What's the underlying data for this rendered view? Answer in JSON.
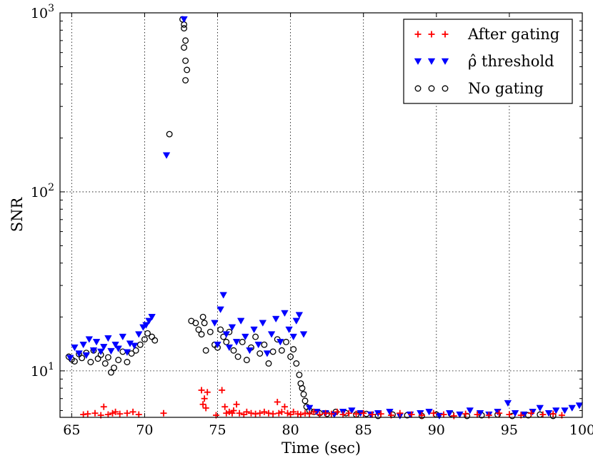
{
  "chart_data": {
    "type": "scatter",
    "title": "",
    "xlabel": "Time (sec)",
    "ylabel": "SNR",
    "xlim": [
      64.2,
      100
    ],
    "ylim": [
      5.5,
      1000
    ],
    "yscale": "log",
    "grid": true,
    "legend_position": "top-right",
    "x_ticks": [
      65,
      70,
      75,
      80,
      85,
      90,
      95,
      100
    ],
    "x_tick_labels": [
      "65",
      "70",
      "75",
      "80",
      "85",
      "90",
      "95",
      "100"
    ],
    "y_ticks": [
      10,
      100,
      1000
    ],
    "y_tick_labels": [
      {
        "base": "10",
        "exp": "1"
      },
      {
        "base": "10",
        "exp": "2"
      },
      {
        "base": "10",
        "exp": "3"
      }
    ],
    "series": [
      {
        "name": "After gating",
        "marker": "plus",
        "color": "#ff0000",
        "x": [
          65.8,
          66.1,
          66.6,
          67.0,
          67.2,
          67.5,
          67.8,
          68.0,
          68.3,
          68.8,
          69.2,
          69.6,
          71.3,
          73.9,
          74.0,
          74.1,
          74.2,
          74.3,
          74.9,
          75.3,
          75.5,
          75.6,
          75.8,
          76.0,
          76.1,
          76.3,
          76.5,
          76.8,
          77.0,
          77.3,
          77.6,
          77.9,
          78.2,
          78.5,
          78.8,
          79.1,
          79.2,
          79.4,
          79.6,
          79.8,
          80.0,
          80.2,
          80.5,
          80.7,
          81.0,
          81.3,
          81.6,
          82.0,
          82.4,
          82.8,
          83.2,
          83.6,
          84.0,
          84.5,
          85.0,
          85.6,
          86.2,
          86.9,
          87.5,
          88.3,
          89.0,
          89.8,
          90.5,
          91.2,
          92.0,
          92.8,
          93.6,
          94.3,
          95.0,
          95.8,
          96.5,
          97.3,
          98.0,
          98.6
        ],
        "y": [
          5.7,
          5.75,
          5.8,
          5.65,
          6.3,
          5.7,
          5.8,
          5.9,
          5.75,
          5.8,
          5.9,
          5.7,
          5.8,
          7.8,
          6.5,
          7.0,
          6.2,
          7.6,
          5.65,
          7.8,
          6.3,
          5.8,
          5.9,
          5.8,
          6.0,
          6.5,
          5.8,
          5.7,
          5.9,
          5.8,
          5.75,
          5.8,
          5.9,
          5.8,
          5.75,
          6.7,
          5.8,
          5.9,
          6.3,
          5.8,
          5.7,
          5.9,
          5.75,
          5.7,
          5.8,
          5.75,
          5.9,
          5.7,
          5.8,
          5.75,
          5.9,
          5.7,
          5.8,
          5.75,
          5.8,
          5.7,
          5.75,
          5.65,
          5.8,
          5.7,
          5.65,
          5.8,
          5.7,
          5.6,
          5.75,
          5.7,
          5.65,
          5.8,
          5.7,
          5.65,
          5.8,
          5.7,
          5.75,
          5.65
        ]
      },
      {
        "name": "ρ̂ threshold",
        "marker": "triangle-down",
        "color": "#0000ff",
        "x": [
          64.9,
          65.2,
          65.5,
          65.8,
          66.0,
          66.2,
          66.5,
          66.7,
          67.0,
          67.2,
          67.5,
          67.7,
          68.0,
          68.2,
          68.5,
          68.8,
          69.0,
          69.3,
          69.6,
          69.9,
          70.1,
          70.3,
          70.5,
          71.5,
          72.7,
          74.8,
          75.0,
          75.2,
          75.4,
          75.6,
          75.8,
          76.0,
          76.3,
          76.6,
          76.9,
          77.2,
          77.5,
          77.8,
          78.1,
          78.4,
          78.7,
          79.0,
          79.3,
          79.6,
          79.9,
          80.2,
          80.4,
          80.6,
          80.9,
          81.3,
          81.8,
          82.4,
          83.0,
          83.6,
          84.2,
          84.8,
          85.5,
          86.0,
          86.8,
          87.5,
          88.2,
          88.9,
          89.5,
          90.2,
          90.9,
          91.6,
          92.3,
          93.0,
          93.6,
          94.2,
          94.9,
          95.4,
          96.0,
          96.6,
          97.1,
          97.7,
          98.2,
          98.8,
          99.3,
          99.8
        ],
        "y": [
          11.8,
          13.5,
          12.5,
          14.0,
          12.2,
          15.0,
          13.0,
          14.5,
          12.8,
          13.6,
          15.2,
          12.9,
          14.0,
          13.3,
          15.5,
          12.7,
          14.2,
          13.8,
          16.0,
          17.5,
          18.0,
          19.0,
          20.0,
          160,
          920,
          18.5,
          14.0,
          22.0,
          26.5,
          16.0,
          13.5,
          17.5,
          14.5,
          19.0,
          15.5,
          13.0,
          17.0,
          14.0,
          18.5,
          12.5,
          16.0,
          19.5,
          14.5,
          21.0,
          17.0,
          15.5,
          19.0,
          20.5,
          16.0,
          6.2,
          5.9,
          5.8,
          5.7,
          5.9,
          6.0,
          5.8,
          5.7,
          5.8,
          5.9,
          5.6,
          5.7,
          5.8,
          5.9,
          5.6,
          5.8,
          5.7,
          6.0,
          5.8,
          5.7,
          5.9,
          6.6,
          5.8,
          5.7,
          5.9,
          6.2,
          5.8,
          6.0,
          6.0,
          6.2,
          6.4
        ]
      },
      {
        "name": "No gating",
        "marker": "circle",
        "color": "#000000",
        "x": [
          64.8,
          65.0,
          65.2,
          65.5,
          65.7,
          66.0,
          66.3,
          66.5,
          66.8,
          67.0,
          67.3,
          67.5,
          67.7,
          67.9,
          68.2,
          68.5,
          68.8,
          69.1,
          69.4,
          69.7,
          70.0,
          70.2,
          70.5,
          70.7,
          71.7,
          72.6,
          72.7,
          72.8,
          72.7,
          72.8,
          72.9,
          72.8,
          72.7,
          73.2,
          73.5,
          73.7,
          73.9,
          74.0,
          74.1,
          74.2,
          74.5,
          74.8,
          75.0,
          75.2,
          75.4,
          75.6,
          75.8,
          76.1,
          76.4,
          76.7,
          77.0,
          77.3,
          77.6,
          77.9,
          78.2,
          78.5,
          78.8,
          79.1,
          79.4,
          79.7,
          80.0,
          80.2,
          80.4,
          80.6,
          80.7,
          80.8,
          80.9,
          81.0,
          81.1,
          81.3,
          81.6,
          82.0,
          82.5,
          83.1,
          83.8,
          84.5,
          85.2,
          86.0,
          87.0,
          88.0,
          89.0,
          90.0,
          91.0,
          92.1,
          93.1,
          94.2,
          95.2,
          96.3,
          97.1,
          98.0
        ],
        "y": [
          12.0,
          11.6,
          11.3,
          12.4,
          11.8,
          12.6,
          11.2,
          13.0,
          11.7,
          12.3,
          11.0,
          11.9,
          9.8,
          10.4,
          11.5,
          12.8,
          11.2,
          12.5,
          13.0,
          14.0,
          15.0,
          16.2,
          15.5,
          14.8,
          210,
          920,
          820,
          700,
          640,
          540,
          480,
          420,
          860,
          19.0,
          18.5,
          17.0,
          16.0,
          20.0,
          18.5,
          13.0,
          16.5,
          14.0,
          13.5,
          17.0,
          15.5,
          14.5,
          16.5,
          13.0,
          12.0,
          14.5,
          11.5,
          13.5,
          15.5,
          12.5,
          14.0,
          11.0,
          12.8,
          15.0,
          13.0,
          14.5,
          12.0,
          13.2,
          11.0,
          9.5,
          8.5,
          8.0,
          7.4,
          6.8,
          6.3,
          6.0,
          5.9,
          5.8,
          5.75,
          5.9,
          5.8,
          5.7,
          5.75,
          5.6,
          5.7,
          5.65,
          5.6,
          5.7,
          5.75,
          5.6,
          5.65,
          5.7,
          5.6,
          5.65,
          5.7,
          5.6
        ]
      }
    ]
  }
}
